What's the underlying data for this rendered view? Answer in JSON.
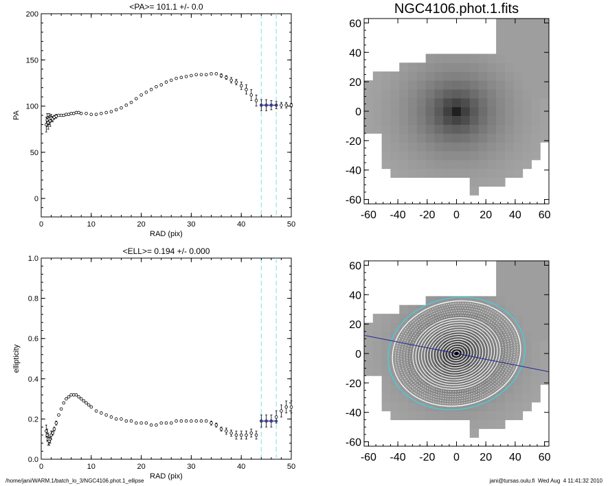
{
  "footer": {
    "path": "/home/jani/WARM.1/batch_lo_3/NGC4106.phot.1_ellipse",
    "stamp": "jani@tursas.oulu.fi  Wed Aug  4 11:41:32 2010"
  },
  "chart_data": [
    {
      "type": "scatter",
      "title": "<PA>= 101.1 +/-   0.0",
      "xlabel": "RAD (pix)",
      "ylabel": "PA",
      "xlim": [
        0,
        50
      ],
      "ylim": [
        -20,
        200
      ],
      "xticks": [
        0,
        10,
        20,
        30,
        40,
        50
      ],
      "yticks": [
        0,
        50,
        100,
        150,
        200
      ],
      "vlines": [
        44,
        47
      ],
      "series": [
        {
          "marker": "circle-open",
          "color": "#000000",
          "x": [
            1.0,
            1.2,
            1.4,
            1.6,
            1.8,
            2.0,
            2.3,
            2.6,
            3.0,
            3.5,
            4.0,
            4.5,
            5.0,
            5.5,
            6.0,
            6.5,
            7.0,
            7.5,
            8.0,
            9.0,
            10.0,
            11.0,
            12.0,
            13.0,
            14.0,
            15.0,
            16.0,
            17.0,
            18.0,
            19.0,
            20.0,
            21.0,
            22.0,
            23.0,
            24.0,
            25.0,
            26.0,
            27.0,
            28.0,
            29.0,
            30.0,
            31.0,
            32.0,
            33.0,
            34.0,
            35.0,
            36.0,
            37.0,
            38.0,
            39.0,
            40.0,
            41.0,
            42.0,
            43.0,
            44.0,
            45.0,
            46.0,
            47.0,
            48.0,
            49.0,
            50.0
          ],
          "y": [
            80,
            85,
            82,
            86,
            84,
            87,
            86,
            88,
            89,
            90,
            90,
            90,
            91,
            91,
            92,
            92,
            93,
            93,
            92,
            92,
            91,
            91,
            92,
            93,
            94,
            96,
            98,
            101,
            104,
            108,
            112,
            115,
            118,
            121,
            123,
            126,
            128,
            130,
            131,
            132,
            133,
            134,
            134,
            134,
            135,
            135,
            133,
            131,
            128,
            126,
            122,
            118,
            112,
            106,
            101,
            101,
            101,
            101,
            101,
            101,
            101
          ],
          "yerr": [
            8,
            7,
            7,
            6,
            6,
            4,
            3,
            2,
            2,
            1,
            1,
            1,
            1,
            1,
            1,
            1,
            1,
            1,
            1,
            1,
            1,
            1,
            1,
            1,
            1,
            1,
            1,
            1,
            1,
            1,
            1,
            1,
            1,
            1,
            1,
            1,
            1,
            1,
            1,
            1,
            1,
            1,
            1,
            1,
            1,
            1,
            2,
            2,
            3,
            3,
            4,
            5,
            6,
            6,
            6,
            6,
            5,
            4,
            3,
            3,
            2
          ]
        },
        {
          "marker": "filled-line",
          "color": "#3a3f9a",
          "x": [
            44,
            45,
            46,
            47
          ],
          "y": [
            101,
            101,
            101,
            101
          ],
          "yerr": [
            0,
            0,
            0,
            0
          ]
        }
      ]
    },
    {
      "type": "scatter",
      "title": "<ELL>= 0.194 +/-  0.000",
      "xlabel": "RAD (pix)",
      "ylabel": "ellipticity",
      "xlim": [
        0,
        50
      ],
      "ylim": [
        0,
        1
      ],
      "xticks": [
        0,
        10,
        20,
        30,
        40,
        50
      ],
      "yticks": [
        0.0,
        0.2,
        0.4,
        0.6,
        0.8,
        1.0
      ],
      "vlines": [
        44,
        47
      ],
      "series": [
        {
          "marker": "circle-open",
          "color": "#000000",
          "x": [
            1.0,
            1.2,
            1.4,
            1.6,
            1.8,
            2.0,
            2.3,
            2.6,
            3.0,
            3.5,
            4.0,
            4.5,
            5.0,
            5.5,
            6.0,
            6.5,
            7.0,
            7.5,
            8.0,
            8.5,
            9.0,
            9.5,
            10.0,
            11.0,
            12.0,
            13.0,
            14.0,
            15.0,
            16.0,
            17.0,
            18.0,
            19.0,
            20.0,
            21.0,
            22.0,
            23.0,
            24.0,
            25.0,
            26.0,
            27.0,
            28.0,
            29.0,
            30.0,
            31.0,
            32.0,
            33.0,
            34.0,
            35.0,
            36.0,
            37.0,
            38.0,
            39.0,
            40.0,
            41.0,
            42.0,
            43.0,
            44.0,
            45.0,
            46.0,
            47.0,
            48.0,
            49.0,
            50.0
          ],
          "y": [
            0.14,
            0.12,
            0.1,
            0.09,
            0.1,
            0.12,
            0.13,
            0.15,
            0.18,
            0.22,
            0.25,
            0.28,
            0.3,
            0.31,
            0.32,
            0.32,
            0.32,
            0.31,
            0.3,
            0.29,
            0.28,
            0.27,
            0.26,
            0.24,
            0.23,
            0.22,
            0.21,
            0.2,
            0.2,
            0.19,
            0.19,
            0.18,
            0.18,
            0.18,
            0.17,
            0.17,
            0.18,
            0.18,
            0.18,
            0.19,
            0.19,
            0.19,
            0.19,
            0.19,
            0.19,
            0.19,
            0.18,
            0.17,
            0.15,
            0.14,
            0.13,
            0.12,
            0.12,
            0.12,
            0.13,
            0.12,
            0.19,
            0.19,
            0.19,
            0.21,
            0.24,
            0.26,
            0.26
          ],
          "yerr": [
            0.03,
            0.03,
            0.03,
            0.02,
            0.02,
            0.02,
            0.01,
            0.01,
            0.01,
            0.005,
            0.005,
            0.005,
            0.005,
            0.005,
            0.005,
            0.005,
            0.005,
            0.005,
            0.005,
            0.005,
            0.005,
            0.005,
            0.005,
            0.005,
            0.005,
            0.005,
            0.005,
            0.005,
            0.005,
            0.005,
            0.005,
            0.005,
            0.005,
            0.005,
            0.005,
            0.005,
            0.005,
            0.005,
            0.005,
            0.005,
            0.005,
            0.005,
            0.005,
            0.005,
            0.005,
            0.005,
            0.01,
            0.01,
            0.01,
            0.015,
            0.015,
            0.02,
            0.02,
            0.02,
            0.02,
            0.02,
            0.03,
            0.03,
            0.03,
            0.03,
            0.03,
            0.03,
            0.03
          ]
        },
        {
          "marker": "filled-line",
          "color": "#3a3f9a",
          "x": [
            44,
            45,
            46,
            47
          ],
          "y": [
            0.19,
            0.19,
            0.19,
            0.19
          ],
          "yerr": [
            0,
            0,
            0,
            0
          ]
        }
      ]
    },
    {
      "type": "heatmap",
      "title": "NGC4106.phot.1.fits",
      "xlim": [
        -63,
        63
      ],
      "ylim": [
        -63,
        63
      ],
      "xticks": [
        -60,
        -40,
        -20,
        0,
        20,
        40,
        60
      ],
      "yticks": [
        -60,
        -40,
        -20,
        0,
        20,
        40,
        60
      ],
      "colormap": "gray",
      "overlay": false
    },
    {
      "type": "heatmap",
      "title": "",
      "xlim": [
        -63,
        63
      ],
      "ylim": [
        -63,
        63
      ],
      "xticks": [
        -60,
        -40,
        -20,
        0,
        20,
        40,
        60
      ],
      "yticks": [
        -60,
        -40,
        -20,
        0,
        20,
        40,
        60
      ],
      "colormap": "gray",
      "overlay": true,
      "ellipse_overlay": {
        "pa_deg": 101.1,
        "ellipticity": 0.194,
        "outer_radius": 47,
        "marked_radii": [
          44,
          47
        ],
        "marked_colors": [
          "#ffffff",
          "#40d0e0"
        ],
        "major_axis_color": "#22229a"
      }
    }
  ]
}
